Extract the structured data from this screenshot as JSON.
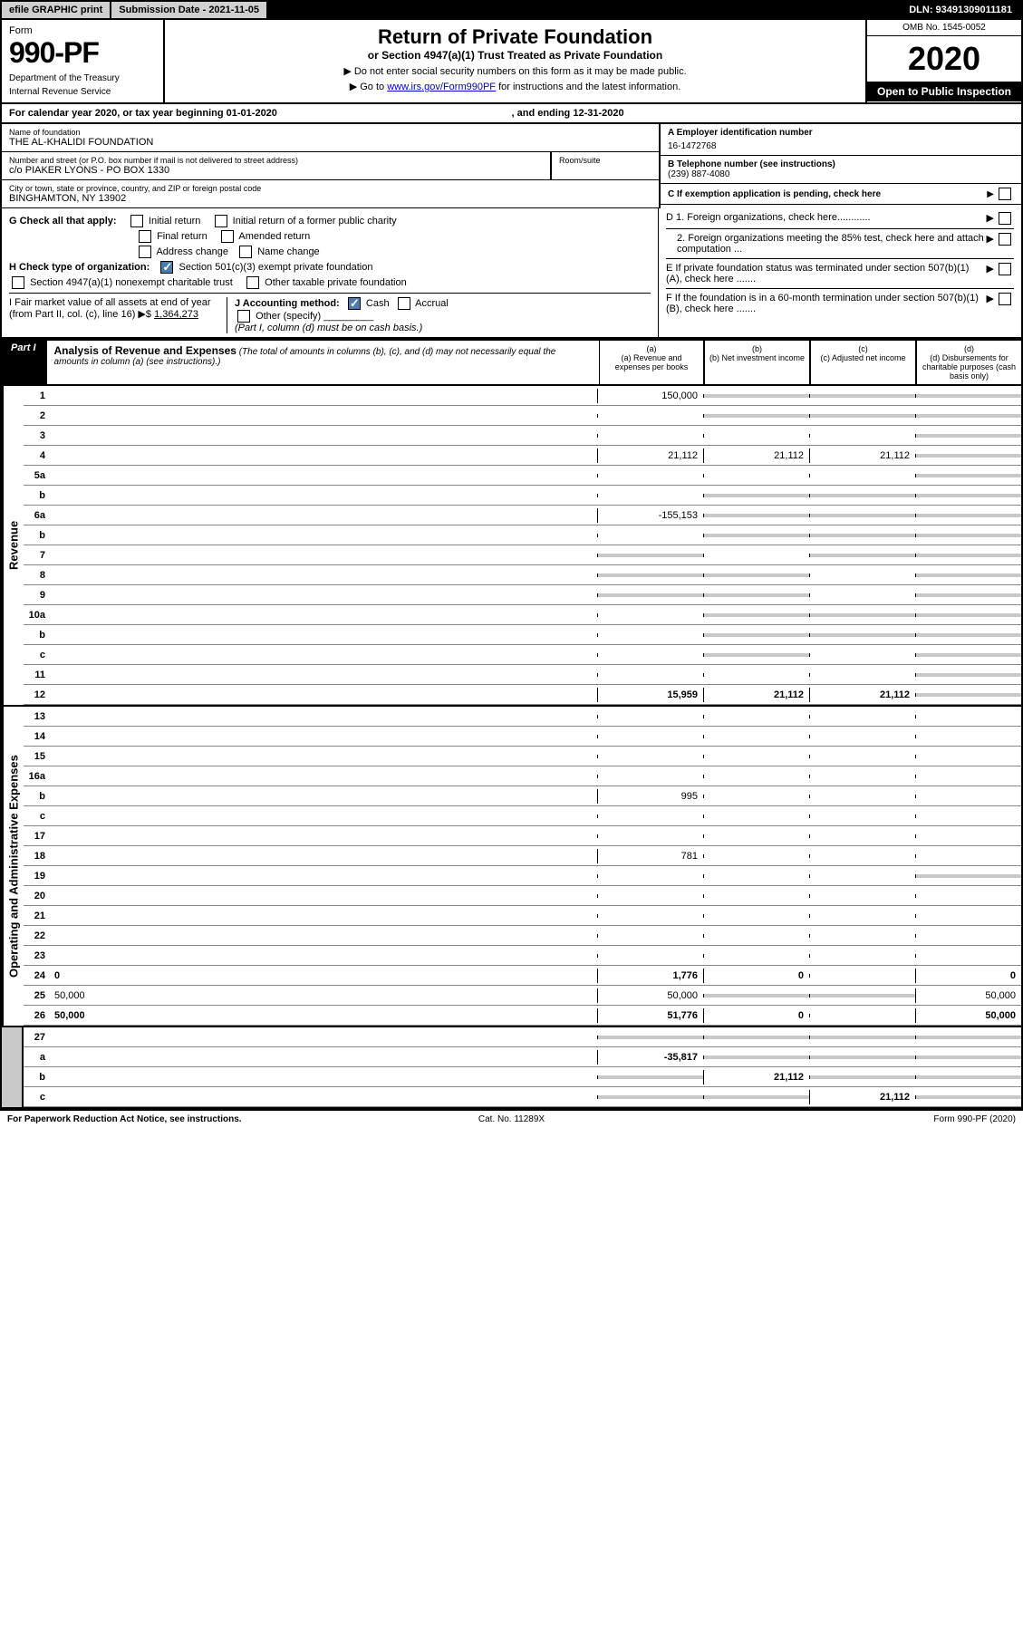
{
  "topbar": {
    "efile": "efile GRAPHIC print",
    "subdate": "Submission Date - 2021-11-05",
    "dln": "DLN: 93491309011181"
  },
  "header": {
    "form_label": "Form",
    "form_num": "990-PF",
    "dept1": "Department of the Treasury",
    "dept2": "Internal Revenue Service",
    "title": "Return of Private Foundation",
    "subtitle": "or Section 4947(a)(1) Trust Treated as Private Foundation",
    "instr1": "▶ Do not enter social security numbers on this form as it may be made public.",
    "instr2_pre": "▶ Go to ",
    "instr2_link": "www.irs.gov/Form990PF",
    "instr2_post": " for instructions and the latest information.",
    "omb": "OMB No. 1545-0052",
    "year": "2020",
    "open": "Open to Public Inspection"
  },
  "calyear": {
    "text": "For calendar year 2020, or tax year beginning 01-01-2020",
    "ending": ", and ending 12-31-2020"
  },
  "info": {
    "name_label": "Name of foundation",
    "name": "THE AL-KHALIDI FOUNDATION",
    "addr_label": "Number and street (or P.O. box number if mail is not delivered to street address)",
    "addr": "c/o PIAKER LYONS - PO BOX 1330",
    "room_label": "Room/suite",
    "city_label": "City or town, state or province, country, and ZIP or foreign postal code",
    "city": "BINGHAMTON, NY  13902",
    "a_label": "A Employer identification number",
    "a_val": "16-1472768",
    "b_label": "B Telephone number (see instructions)",
    "b_val": "(239) 887-4080",
    "c_label": "C If exemption application is pending, check here",
    "d1": "D 1. Foreign organizations, check here............",
    "d2": "2. Foreign organizations meeting the 85% test, check here and attach computation ...",
    "e_label": "E  If private foundation status was terminated under section 507(b)(1)(A), check here .......",
    "f_label": "F  If the foundation is in a 60-month termination under section 507(b)(1)(B), check here .......",
    "g_label": "G Check all that apply:",
    "g_initial": "Initial return",
    "g_initial_pub": "Initial return of a former public charity",
    "g_final": "Final return",
    "g_amended": "Amended return",
    "g_addr": "Address change",
    "g_name": "Name change",
    "h_label": "H Check type of organization:",
    "h_501c3": "Section 501(c)(3) exempt private foundation",
    "h_4947": "Section 4947(a)(1) nonexempt charitable trust",
    "h_other": "Other taxable private foundation",
    "i_label": "I Fair market value of all assets at end of year (from Part II, col. (c), line 16) ▶$",
    "i_val": "1,364,273",
    "j_label": "J Accounting method:",
    "j_cash": "Cash",
    "j_accrual": "Accrual",
    "j_other": "Other (specify)",
    "j_note": "(Part I, column (d) must be on cash basis.)"
  },
  "part1": {
    "tab": "Part I",
    "title": "Analysis of Revenue and Expenses",
    "subtitle": " (The total of amounts in columns (b), (c), and (d) may not necessarily equal the amounts in column (a) (see instructions).)",
    "col_a": "(a) Revenue and expenses per books",
    "col_b": "(b) Net investment income",
    "col_c": "(c) Adjusted net income",
    "col_d": "(d) Disbursements for charitable purposes (cash basis only)"
  },
  "side_labels": {
    "revenue": "Revenue",
    "expenses": "Operating and Administrative Expenses"
  },
  "rows": [
    {
      "n": "1",
      "d": "",
      "a": "150,000",
      "b": "",
      "c": "",
      "bs": true,
      "cs": true,
      "ds": true
    },
    {
      "n": "2",
      "d": "",
      "a": "",
      "b": "",
      "c": "",
      "bs": true,
      "cs": true,
      "ds": true,
      "noborder": true
    },
    {
      "n": "3",
      "d": "",
      "a": "",
      "b": "",
      "c": "",
      "ds": true
    },
    {
      "n": "4",
      "d": "",
      "a": "21,112",
      "b": "21,112",
      "c": "21,112",
      "ds": true
    },
    {
      "n": "5a",
      "d": "",
      "a": "",
      "b": "",
      "c": "",
      "ds": true
    },
    {
      "n": "b",
      "d": "",
      "a": "",
      "b": "",
      "c": "",
      "bs": true,
      "cs": true,
      "ds": true
    },
    {
      "n": "6a",
      "d": "",
      "a": "-155,153",
      "b": "",
      "c": "",
      "bs": true,
      "cs": true,
      "ds": true
    },
    {
      "n": "b",
      "d": "",
      "a": "",
      "b": "",
      "c": "",
      "bs": true,
      "cs": true,
      "ds": true
    },
    {
      "n": "7",
      "d": "",
      "a": "",
      "b": "",
      "c": "",
      "as": true,
      "cs": true,
      "ds": true
    },
    {
      "n": "8",
      "d": "",
      "a": "",
      "b": "",
      "c": "",
      "as": true,
      "bs": true,
      "ds": true
    },
    {
      "n": "9",
      "d": "",
      "a": "",
      "b": "",
      "c": "",
      "as": true,
      "bs": true,
      "ds": true
    },
    {
      "n": "10a",
      "d": "",
      "a": "",
      "b": "",
      "c": "",
      "bs": true,
      "cs": true,
      "ds": true
    },
    {
      "n": "b",
      "d": "",
      "a": "",
      "b": "",
      "c": "",
      "bs": true,
      "cs": true,
      "ds": true
    },
    {
      "n": "c",
      "d": "",
      "a": "",
      "b": "",
      "c": "",
      "bs": true,
      "ds": true
    },
    {
      "n": "11",
      "d": "",
      "a": "",
      "b": "",
      "c": "",
      "ds": true
    },
    {
      "n": "12",
      "d": "",
      "a": "15,959",
      "b": "21,112",
      "c": "21,112",
      "bold": true,
      "ds": true
    }
  ],
  "exp_rows": [
    {
      "n": "13",
      "d": "",
      "a": "",
      "b": "",
      "c": ""
    },
    {
      "n": "14",
      "d": "",
      "a": "",
      "b": "",
      "c": ""
    },
    {
      "n": "15",
      "d": "",
      "a": "",
      "b": "",
      "c": ""
    },
    {
      "n": "16a",
      "d": "",
      "a": "",
      "b": "",
      "c": ""
    },
    {
      "n": "b",
      "d": "",
      "a": "995",
      "b": "",
      "c": ""
    },
    {
      "n": "c",
      "d": "",
      "a": "",
      "b": "",
      "c": ""
    },
    {
      "n": "17",
      "d": "",
      "a": "",
      "b": "",
      "c": ""
    },
    {
      "n": "18",
      "d": "",
      "a": "781",
      "b": "",
      "c": ""
    },
    {
      "n": "19",
      "d": "",
      "a": "",
      "b": "",
      "c": "",
      "ds": true
    },
    {
      "n": "20",
      "d": "",
      "a": "",
      "b": "",
      "c": ""
    },
    {
      "n": "21",
      "d": "",
      "a": "",
      "b": "",
      "c": ""
    },
    {
      "n": "22",
      "d": "",
      "a": "",
      "b": "",
      "c": ""
    },
    {
      "n": "23",
      "d": "",
      "a": "",
      "b": "",
      "c": ""
    },
    {
      "n": "24",
      "d": "0",
      "a": "1,776",
      "b": "0",
      "c": "",
      "bold": true
    },
    {
      "n": "25",
      "d": "50,000",
      "a": "50,000",
      "b": "",
      "c": "",
      "bs": true,
      "cs": true
    },
    {
      "n": "26",
      "d": "50,000",
      "a": "51,776",
      "b": "0",
      "c": "",
      "bold": true
    }
  ],
  "net_rows": [
    {
      "n": "27",
      "d": "",
      "a": "",
      "b": "",
      "c": "",
      "as": true,
      "bs": true,
      "cs": true,
      "ds": true
    },
    {
      "n": "a",
      "d": "",
      "a": "-35,817",
      "b": "",
      "c": "",
      "bold": true,
      "bs": true,
      "cs": true,
      "ds": true
    },
    {
      "n": "b",
      "d": "",
      "a": "",
      "b": "21,112",
      "c": "",
      "bold": true,
      "as": true,
      "cs": true,
      "ds": true
    },
    {
      "n": "c",
      "d": "",
      "a": "",
      "b": "",
      "c": "21,112",
      "bold": true,
      "as": true,
      "bs": true,
      "ds": true
    }
  ],
  "footer": {
    "left": "For Paperwork Reduction Act Notice, see instructions.",
    "mid": "Cat. No. 11289X",
    "right": "Form 990-PF (2020)"
  }
}
